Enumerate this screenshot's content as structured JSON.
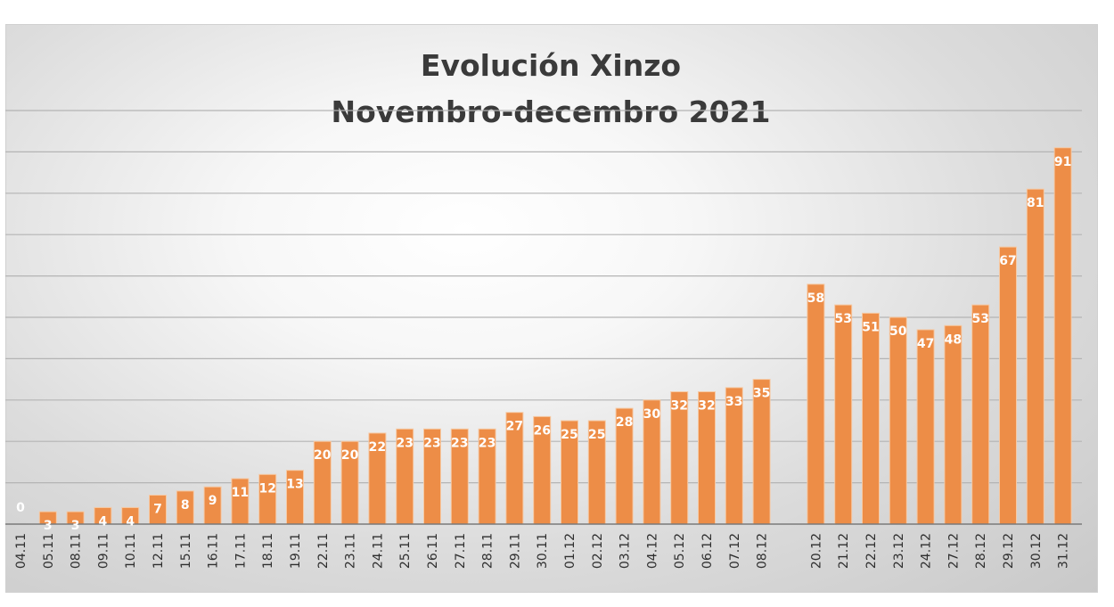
{
  "chart_data": {
    "type": "bar",
    "title": "Evolución Xinzo",
    "subtitle": "Novembro-decembro 2021",
    "categories": [
      "04.11",
      "05.11",
      "08.11",
      "09.11",
      "10.11",
      "12.11",
      "15.11",
      "16.11",
      "17.11",
      "18.11",
      "19.11",
      "22.11",
      "23.11",
      "24.11",
      "25.11",
      "26.11",
      "27.11",
      "28.11",
      "29.11",
      "30.11",
      "01.12",
      "02.12",
      "03.12",
      "04.12",
      "05.12",
      "06.12",
      "07.12",
      "08.12",
      "20.12",
      "21.12",
      "22.12",
      "23.12",
      "24.12",
      "27.12",
      "28.12",
      "29.12",
      "30.12",
      "31.12"
    ],
    "values": [
      0,
      3,
      3,
      4,
      4,
      7,
      8,
      9,
      11,
      12,
      13,
      20,
      20,
      22,
      23,
      23,
      23,
      23,
      27,
      26,
      25,
      25,
      28,
      30,
      32,
      32,
      33,
      35,
      58,
      53,
      51,
      50,
      47,
      48,
      53,
      67,
      81,
      91
    ],
    "gap_after": "08.12",
    "ylim": [
      0,
      100
    ],
    "grid": true,
    "bar_color": "#ED8D47",
    "label_color": "#ffffff",
    "legend": "none"
  }
}
